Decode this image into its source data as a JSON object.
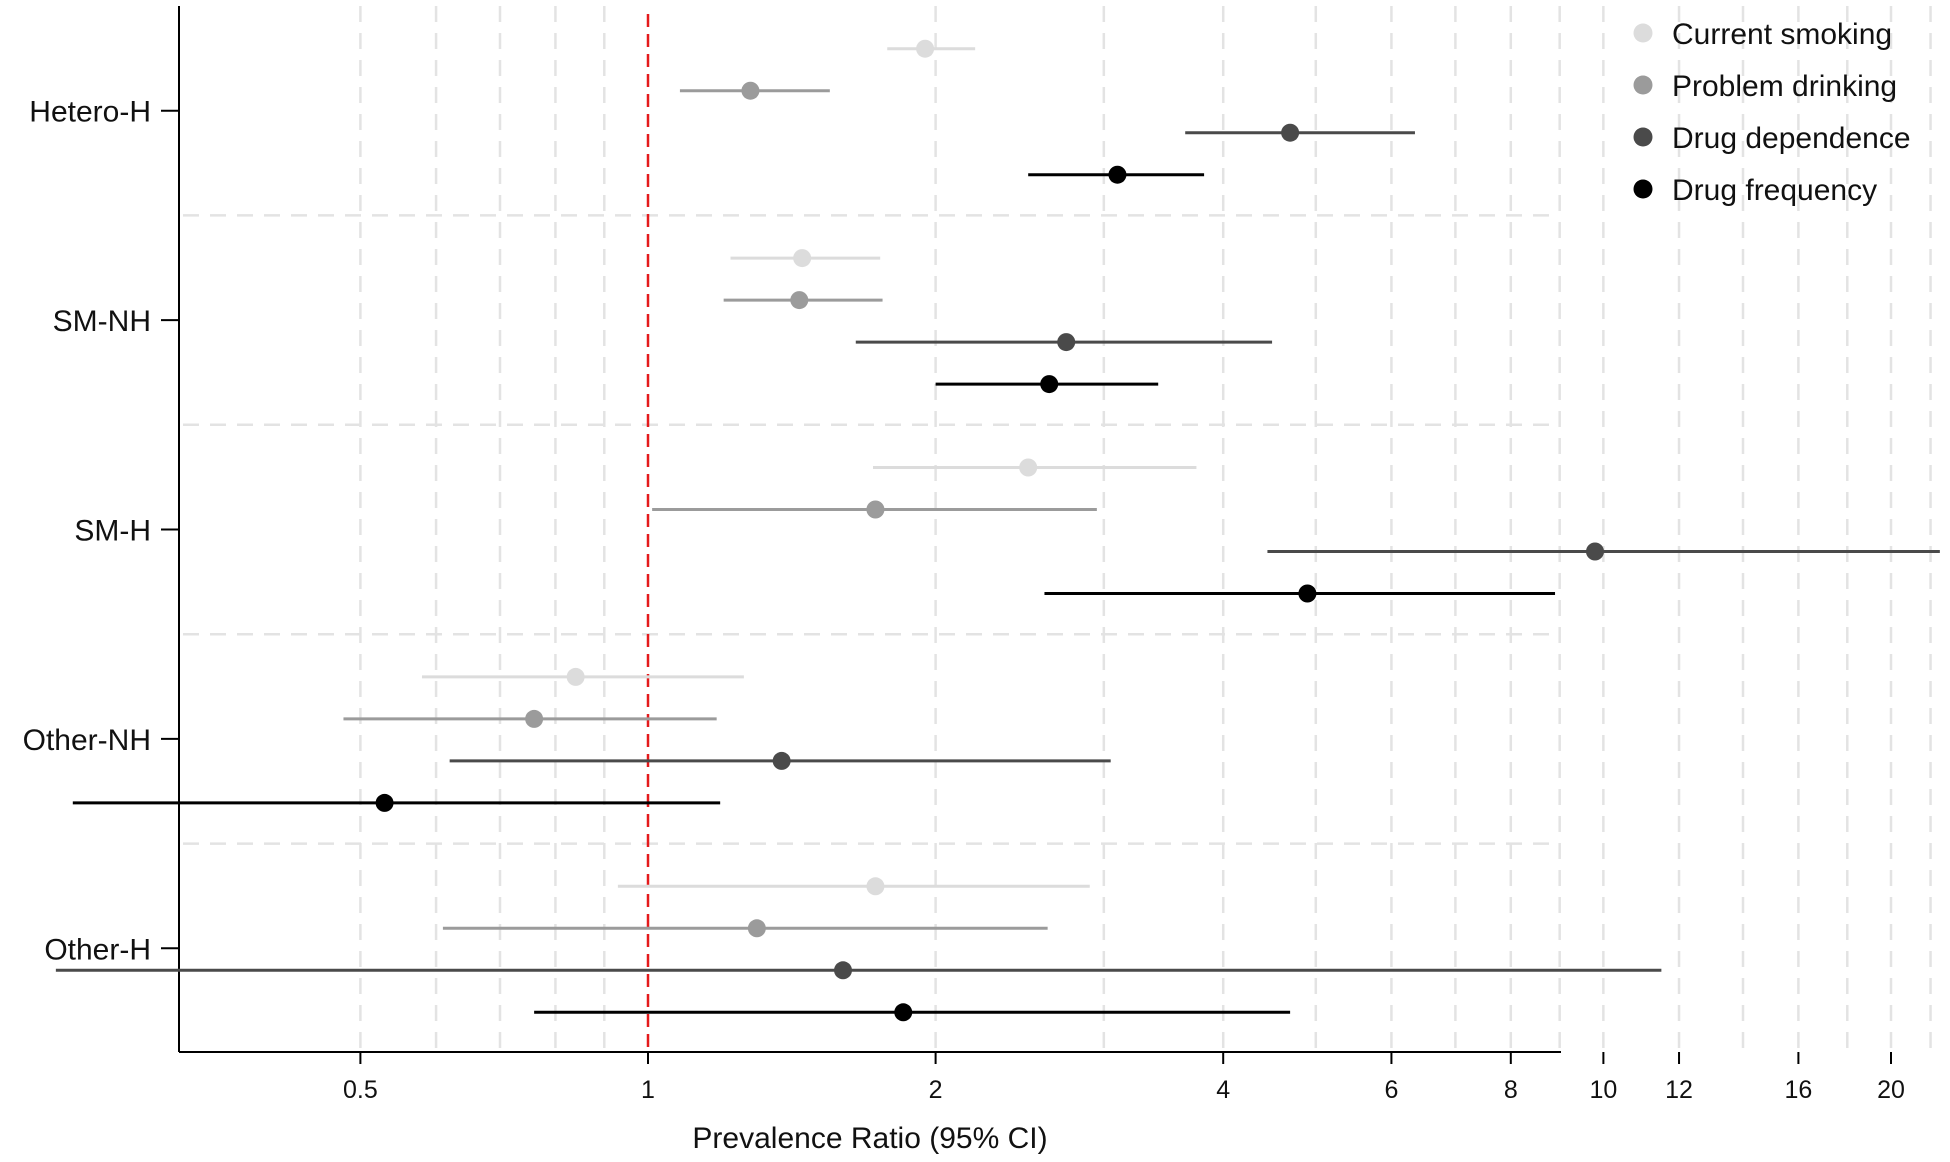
{
  "chart_data": {
    "type": "scatter",
    "subtype": "forest-plot",
    "title": "",
    "xlabel": "Prevalence Ratio (95% CI)",
    "ylabel": "",
    "x_scale": "log",
    "xlim": [
      0.23,
      24
    ],
    "x_ticks": [
      0.5,
      1,
      2,
      4,
      6,
      8,
      10,
      12,
      16,
      20
    ],
    "x_tick_labels": [
      "0.5",
      "1",
      "2",
      "4",
      "6",
      "8",
      "10",
      "12",
      "16",
      "20"
    ],
    "x_gridlines": [
      0.5,
      0.6,
      0.7,
      0.8,
      0.9,
      1,
      2,
      3,
      4,
      5,
      6,
      7,
      8,
      9,
      10,
      12,
      14,
      16,
      18,
      20,
      22
    ],
    "reference_line": {
      "x": 1,
      "color": "#e41a1c",
      "style": "dashed"
    },
    "grid": true,
    "legend_position": "top-right",
    "categories": [
      "Hetero-H",
      "SM-NH",
      "SM-H",
      "Other-NH",
      "Other-H"
    ],
    "series": [
      {
        "name": "Current smoking",
        "color": "#dcdcdc",
        "points": [
          {
            "category": "Hetero-H",
            "estimate": 1.95,
            "lower": 1.78,
            "upper": 2.2
          },
          {
            "category": "SM-NH",
            "estimate": 1.45,
            "lower": 1.22,
            "upper": 1.75
          },
          {
            "category": "SM-H",
            "estimate": 2.5,
            "lower": 1.72,
            "upper": 3.75
          },
          {
            "category": "Other-NH",
            "estimate": 0.84,
            "lower": 0.58,
            "upper": 1.26
          },
          {
            "category": "Other-H",
            "estimate": 1.73,
            "lower": 0.93,
            "upper": 2.9
          }
        ]
      },
      {
        "name": "Problem drinking",
        "color": "#9b9b9b",
        "points": [
          {
            "category": "Hetero-H",
            "estimate": 1.28,
            "lower": 1.08,
            "upper": 1.55
          },
          {
            "category": "SM-NH",
            "estimate": 1.44,
            "lower": 1.2,
            "upper": 1.76
          },
          {
            "category": "SM-H",
            "estimate": 1.73,
            "lower": 1.01,
            "upper": 2.95
          },
          {
            "category": "Other-NH",
            "estimate": 0.76,
            "lower": 0.48,
            "upper": 1.18
          },
          {
            "category": "Other-H",
            "estimate": 1.3,
            "lower": 0.61,
            "upper": 2.62
          }
        ]
      },
      {
        "name": "Drug dependence",
        "color": "#4a4a4a",
        "points": [
          {
            "category": "Hetero-H",
            "estimate": 4.7,
            "lower": 3.65,
            "upper": 6.35
          },
          {
            "category": "SM-NH",
            "estimate": 2.74,
            "lower": 1.65,
            "upper": 4.5
          },
          {
            "category": "SM-H",
            "estimate": 9.8,
            "lower": 4.45,
            "upper": 22.5
          },
          {
            "category": "Other-NH",
            "estimate": 1.38,
            "lower": 0.62,
            "upper": 3.05
          },
          {
            "category": "Other-H",
            "estimate": 1.6,
            "lower": 0.24,
            "upper": 11.5
          }
        ]
      },
      {
        "name": "Drug frequency",
        "color": "#000000",
        "points": [
          {
            "category": "Hetero-H",
            "estimate": 3.1,
            "lower": 2.5,
            "upper": 3.82
          },
          {
            "category": "SM-NH",
            "estimate": 2.63,
            "lower": 2.0,
            "upper": 3.42
          },
          {
            "category": "SM-H",
            "estimate": 4.9,
            "lower": 2.6,
            "upper": 8.9
          },
          {
            "category": "Other-NH",
            "estimate": 0.53,
            "lower": 0.25,
            "upper": 1.19
          },
          {
            "category": "Other-H",
            "estimate": 1.85,
            "lower": 0.76,
            "upper": 4.7
          }
        ]
      }
    ]
  }
}
